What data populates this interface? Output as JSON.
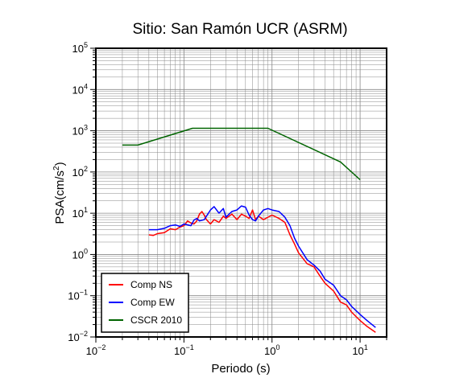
{
  "chart_data": {
    "type": "line",
    "title": "Sitio: San Ramón UCR (ASRM)",
    "xlabel": "Periodo (s)",
    "ylabel": "PSA(cm/s²)",
    "ylabel_text": "PSA(cm/s",
    "ylabel_sup": "2",
    "ylabel_close": ")",
    "x_scale": "log",
    "y_scale": "log",
    "xlim": [
      0.01,
      20
    ],
    "ylim": [
      0.01,
      100000
    ],
    "grid": true,
    "legend_position": "bottom-left",
    "x_ticks": [
      {
        "value": 0.01,
        "base": "10",
        "exp": "−2"
      },
      {
        "value": 0.1,
        "base": "10",
        "exp": "−1"
      },
      {
        "value": 1,
        "base": "10",
        "exp": "0"
      },
      {
        "value": 10,
        "base": "10",
        "exp": "1"
      }
    ],
    "y_ticks": [
      {
        "value": 0.01,
        "base": "10",
        "exp": "−2"
      },
      {
        "value": 0.1,
        "base": "10",
        "exp": "−1"
      },
      {
        "value": 1,
        "base": "10",
        "exp": "0"
      },
      {
        "value": 10,
        "base": "10",
        "exp": "1"
      },
      {
        "value": 100,
        "base": "10",
        "exp": "2"
      },
      {
        "value": 1000,
        "base": "10",
        "exp": "3"
      },
      {
        "value": 10000,
        "base": "10",
        "exp": "4"
      },
      {
        "value": 100000,
        "base": "10",
        "exp": "5"
      }
    ],
    "series": [
      {
        "name": "Comp NS",
        "color": "#ff0000",
        "points": [
          [
            0.04,
            3.0
          ],
          [
            0.045,
            2.9
          ],
          [
            0.05,
            3.2
          ],
          [
            0.06,
            3.4
          ],
          [
            0.07,
            4.2
          ],
          [
            0.08,
            4.0
          ],
          [
            0.09,
            4.6
          ],
          [
            0.1,
            5.0
          ],
          [
            0.11,
            6.5
          ],
          [
            0.12,
            5.8
          ],
          [
            0.13,
            5.5
          ],
          [
            0.14,
            6.5
          ],
          [
            0.15,
            9.5
          ],
          [
            0.16,
            11.0
          ],
          [
            0.17,
            9.0
          ],
          [
            0.18,
            7.0
          ],
          [
            0.2,
            5.5
          ],
          [
            0.22,
            7.0
          ],
          [
            0.25,
            6.0
          ],
          [
            0.28,
            8.5
          ],
          [
            0.3,
            7.5
          ],
          [
            0.35,
            9.5
          ],
          [
            0.4,
            7.0
          ],
          [
            0.45,
            9.5
          ],
          [
            0.5,
            8.5
          ],
          [
            0.55,
            7.5
          ],
          [
            0.6,
            12.0
          ],
          [
            0.65,
            7.0
          ],
          [
            0.7,
            8.5
          ],
          [
            0.8,
            7.0
          ],
          [
            0.9,
            8.0
          ],
          [
            1.0,
            9.0
          ],
          [
            1.2,
            7.5
          ],
          [
            1.4,
            6.0
          ],
          [
            1.6,
            3.0
          ],
          [
            1.8,
            1.8
          ],
          [
            2.0,
            1.1
          ],
          [
            2.5,
            0.6
          ],
          [
            3.0,
            0.5
          ],
          [
            3.5,
            0.3
          ],
          [
            4.0,
            0.2
          ],
          [
            5.0,
            0.13
          ],
          [
            6.0,
            0.07
          ],
          [
            7.0,
            0.06
          ],
          [
            8.0,
            0.04
          ],
          [
            10.0,
            0.025
          ],
          [
            12.0,
            0.018
          ],
          [
            15.0,
            0.013
          ]
        ]
      },
      {
        "name": "Comp EW",
        "color": "#0000ff",
        "points": [
          [
            0.04,
            4.0
          ],
          [
            0.05,
            4.0
          ],
          [
            0.06,
            4.3
          ],
          [
            0.07,
            5.0
          ],
          [
            0.08,
            5.2
          ],
          [
            0.09,
            4.8
          ],
          [
            0.1,
            5.5
          ],
          [
            0.12,
            5.0
          ],
          [
            0.13,
            6.8
          ],
          [
            0.14,
            7.5
          ],
          [
            0.15,
            6.5
          ],
          [
            0.17,
            7.0
          ],
          [
            0.2,
            12.0
          ],
          [
            0.22,
            14.5
          ],
          [
            0.25,
            10.0
          ],
          [
            0.28,
            13.0
          ],
          [
            0.3,
            8.0
          ],
          [
            0.35,
            11.0
          ],
          [
            0.4,
            12.0
          ],
          [
            0.45,
            15.0
          ],
          [
            0.5,
            14.0
          ],
          [
            0.55,
            9.0
          ],
          [
            0.6,
            7.0
          ],
          [
            0.65,
            6.5
          ],
          [
            0.7,
            8.5
          ],
          [
            0.8,
            12.0
          ],
          [
            0.9,
            13.0
          ],
          [
            1.0,
            12.0
          ],
          [
            1.2,
            11.0
          ],
          [
            1.4,
            8.0
          ],
          [
            1.6,
            5.0
          ],
          [
            1.8,
            2.5
          ],
          [
            2.0,
            1.6
          ],
          [
            2.5,
            0.75
          ],
          [
            3.0,
            0.55
          ],
          [
            3.5,
            0.4
          ],
          [
            4.0,
            0.25
          ],
          [
            5.0,
            0.18
          ],
          [
            6.0,
            0.1
          ],
          [
            7.0,
            0.08
          ],
          [
            8.0,
            0.055
          ],
          [
            10.0,
            0.035
          ],
          [
            12.0,
            0.025
          ],
          [
            15.0,
            0.017
          ]
        ]
      },
      {
        "name": "CSCR 2010",
        "color": "#006400",
        "points": [
          [
            0.02,
            450
          ],
          [
            0.03,
            450
          ],
          [
            0.125,
            1150
          ],
          [
            0.9,
            1150
          ],
          [
            6.0,
            175
          ],
          [
            10.0,
            65
          ]
        ]
      }
    ]
  }
}
